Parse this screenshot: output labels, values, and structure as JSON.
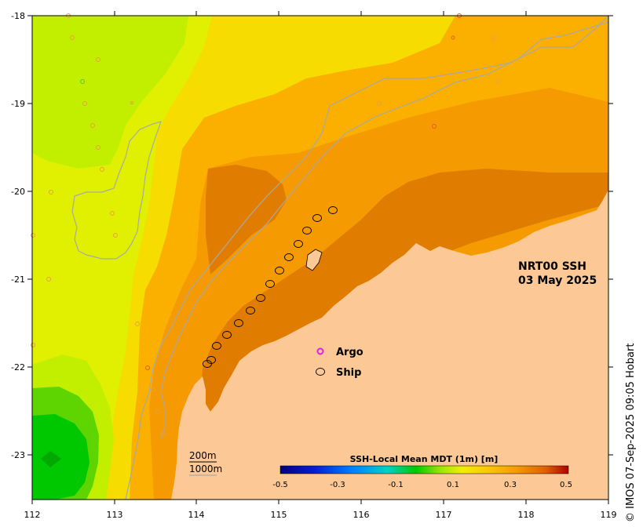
{
  "map": {
    "product_label": "NRT00 SSH",
    "date_label": "03 May 2025",
    "credit": "© IMOS 07-Sep-2025 09:05 Hobart",
    "lon_ticks": [
      "112",
      "113",
      "114",
      "115",
      "116",
      "117",
      "118",
      "119"
    ],
    "lat_ticks": [
      "-18",
      "-19",
      "-20",
      "-21",
      "-22",
      "-23"
    ],
    "legend": {
      "argo": "Argo",
      "ship": "Ship"
    },
    "bathymetry": {
      "label_200": "200m",
      "label_1000": "1000m"
    },
    "colorbar": {
      "title": "SSH-Local Mean MDT (1m) [m]",
      "ticks": [
        "-0.5",
        "-0.3",
        "-0.1",
        "0.1",
        "0.3",
        "0.5"
      ],
      "range": [
        -0.5,
        0.5
      ]
    },
    "colors": {
      "land": "#fcc996",
      "orange_dark": "#e07d00",
      "orange": "#f59a00",
      "amber": "#fbb000",
      "yellow": "#f7dc00",
      "lime": "#e0f000",
      "yellowgreen": "#c2ee00",
      "green": "#5ed400",
      "bright_green": "#00c800",
      "argo_marker": "#e020e0"
    }
  }
}
